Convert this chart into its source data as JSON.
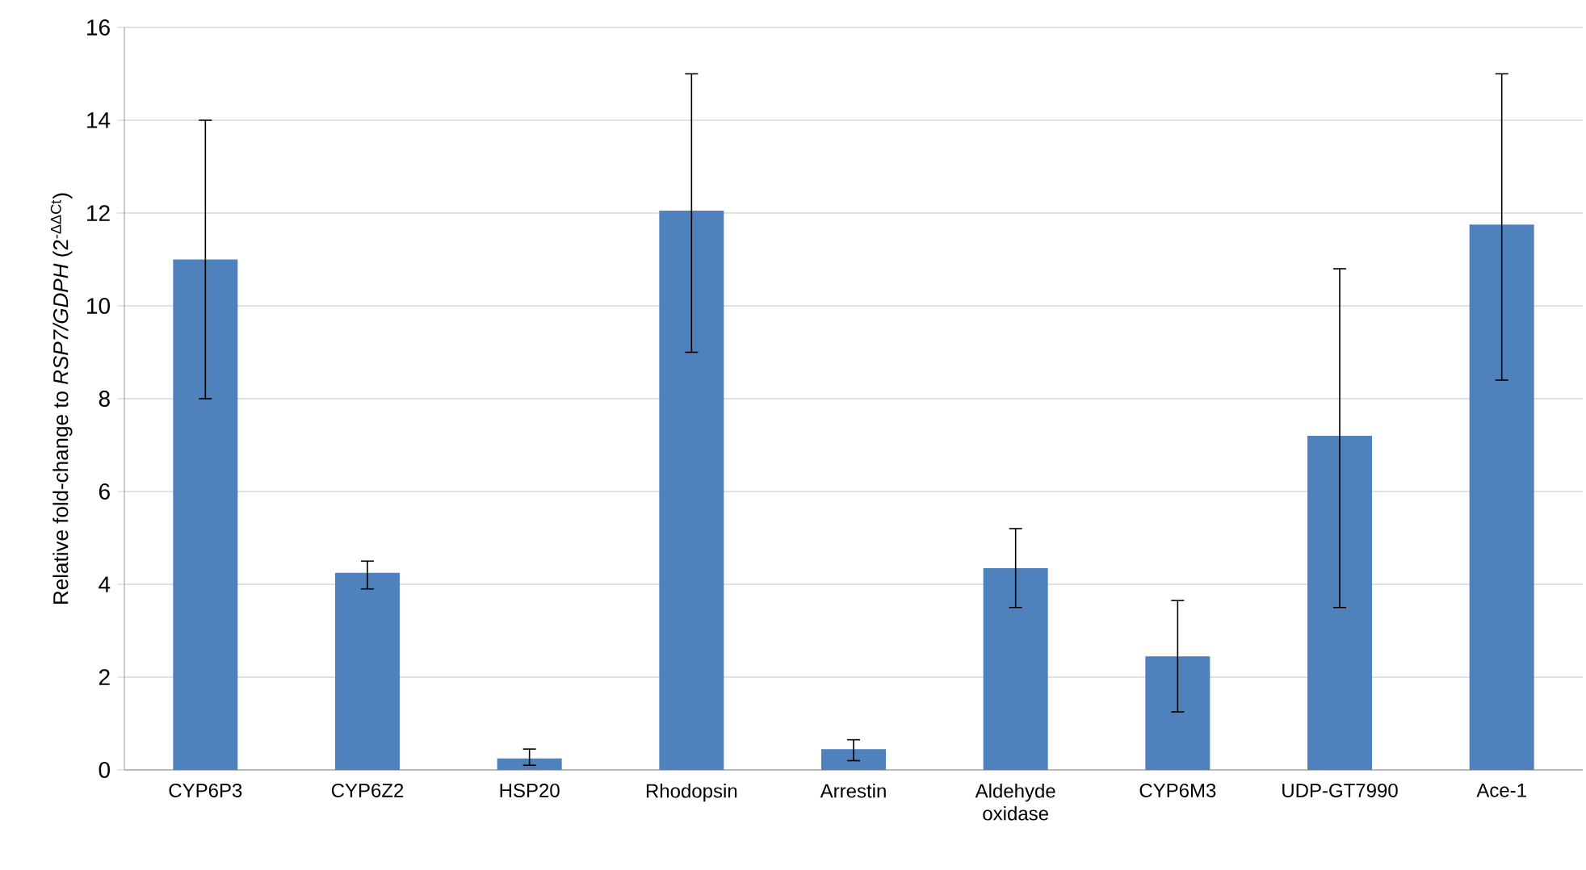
{
  "chart_data": {
    "type": "bar",
    "ylabel": "Relative fold-change to *RSP7/GDPH* (2$^{-ΔΔCt}$)",
    "categories": [
      "CYP6P3",
      "CYP6Z2",
      "HSP20",
      "Rhodopsin",
      "Arrestin",
      "Aldehyde oxidase",
      "CYP6M3",
      "UDP-GT7990",
      "Ace-1"
    ],
    "values": [
      11.0,
      4.25,
      0.25,
      12.05,
      0.45,
      4.35,
      2.45,
      7.2,
      11.75
    ],
    "errors": [
      [
        8.0,
        14.0
      ],
      [
        3.9,
        4.5
      ],
      [
        0.1,
        0.45
      ],
      [
        9.0,
        15.0
      ],
      [
        0.2,
        0.65
      ],
      [
        3.5,
        5.2
      ],
      [
        1.25,
        3.65
      ],
      [
        3.5,
        10.8
      ],
      [
        8.4,
        15.0
      ]
    ],
    "color": "#4f81bd",
    "ylim": [
      0,
      16
    ],
    "yticks": [
      0,
      2,
      4,
      6,
      8,
      10,
      12,
      14,
      16
    ],
    "grid": "y"
  }
}
